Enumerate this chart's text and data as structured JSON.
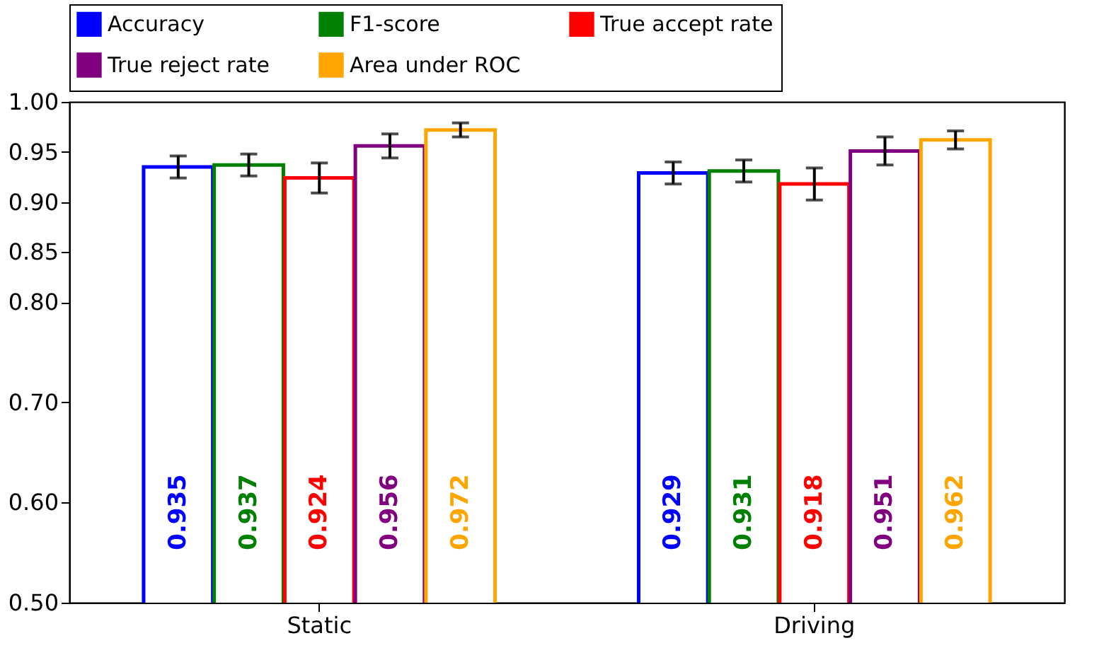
{
  "chart_data": {
    "type": "bar",
    "categories": [
      "Static",
      "Driving"
    ],
    "series": [
      {
        "name": "Accuracy",
        "color": "#0000ff",
        "values": [
          0.935,
          0.929
        ],
        "errors": [
          0.011,
          0.011
        ]
      },
      {
        "name": "F1-score",
        "color": "#008000",
        "values": [
          0.937,
          0.931
        ],
        "errors": [
          0.011,
          0.011
        ]
      },
      {
        "name": "True accept rate",
        "color": "#ff0000",
        "values": [
          0.924,
          0.918
        ],
        "errors": [
          0.015,
          0.016
        ]
      },
      {
        "name": "True reject rate",
        "color": "#800080",
        "values": [
          0.956,
          0.951
        ],
        "errors": [
          0.012,
          0.014
        ]
      },
      {
        "name": "Area under ROC",
        "color": "#ffa500",
        "values": [
          0.972,
          0.962
        ],
        "errors": [
          0.007,
          0.009
        ]
      }
    ],
    "ylim": [
      0.5,
      1.0
    ],
    "yticks": [
      {
        "value": 0.5,
        "label": "0.50"
      },
      {
        "value": 0.6,
        "label": "0.60"
      },
      {
        "value": 0.7,
        "label": "0.70"
      },
      {
        "value": 0.8,
        "label": "0.80"
      },
      0.85,
      {
        "value": 0.9,
        "label": "0.90"
      },
      0.95,
      {
        "value": 1.0,
        "label": "1.00"
      }
    ],
    "data_labels": true,
    "legend": "top",
    "grid": false
  }
}
